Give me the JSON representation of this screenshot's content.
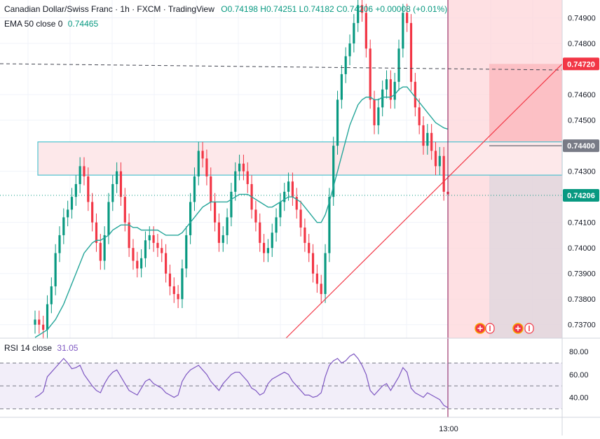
{
  "header": {
    "title": "Canadian Dollar/Swiss Franc · 1h · FXCM · TradingView",
    "ohlc": "O0.74198 H0.74251 L0.74182 C0.74206 +0.00008 (+0.01%)",
    "ema_label": "EMA 50 close 0",
    "ema_value": "0.74465"
  },
  "rsi": {
    "label": "RSI 14 close",
    "value": "31.05",
    "levels": [
      80,
      60,
      40
    ],
    "level_labels": [
      "80.00",
      "60.00",
      "40.00"
    ],
    "upper_band": 70,
    "lower_band": 30
  },
  "price_axis": {
    "ticks": [
      0.749,
      0.748,
      0.746,
      0.745,
      0.743,
      0.741,
      0.74,
      0.739,
      0.738,
      0.737
    ],
    "tick_labels": [
      "0.74900",
      "0.74800",
      "0.74600",
      "0.74500",
      "0.74300",
      "0.74100",
      "0.74000",
      "0.73900",
      "0.73800",
      "0.73700"
    ],
    "tags": [
      {
        "label": "0.74720",
        "value": 0.7472,
        "color": "#f23645"
      },
      {
        "label": "0.74400",
        "value": 0.744,
        "color": "#787b86"
      },
      {
        "label": "0.74206",
        "value": 0.74206,
        "color": "#089981"
      }
    ]
  },
  "time_axis": {
    "label": "13:00"
  },
  "colors": {
    "up": "#089981",
    "down": "#f23645",
    "ema": "#26a69a",
    "rsi": "#7e57c2",
    "zone_border": "#4fc3cf",
    "zone_fill": "#fde8ea",
    "stop_fill": "#fbb8bd",
    "risk_fill": "#fdd6da"
  },
  "icons": [
    "plus-circle-icon",
    "arrow-bar-icon",
    "plus-circle-icon",
    "arrow-bar-icon"
  ],
  "chart_data": {
    "type": "line",
    "title": "Canadian Dollar/Swiss Franc · 1h · FXCM · TradingView",
    "ylim": [
      0.7365,
      0.7497
    ],
    "series": [
      {
        "name": "Close",
        "values": [
          0.7372,
          0.737,
          0.7368,
          0.7378,
          0.7385,
          0.7398,
          0.7405,
          0.7412,
          0.7415,
          0.742,
          0.7425,
          0.7432,
          0.7428,
          0.7418,
          0.741,
          0.7402,
          0.7395,
          0.7405,
          0.7418,
          0.7425,
          0.743,
          0.742,
          0.741,
          0.74,
          0.7395,
          0.7392,
          0.7396,
          0.7403,
          0.7405,
          0.7402,
          0.74,
          0.7398,
          0.739,
          0.7385,
          0.7382,
          0.738,
          0.7392,
          0.7405,
          0.7418,
          0.7428,
          0.7438,
          0.7435,
          0.7428,
          0.7418,
          0.741,
          0.7402,
          0.7405,
          0.7412,
          0.7422,
          0.743,
          0.7433,
          0.743,
          0.7425,
          0.7415,
          0.741,
          0.7402,
          0.7398,
          0.74,
          0.7406,
          0.7412,
          0.7418,
          0.7422,
          0.7426,
          0.742,
          0.7415,
          0.7408,
          0.7402,
          0.7398,
          0.739,
          0.7386,
          0.7382,
          0.7398,
          0.742,
          0.744,
          0.7458,
          0.7468,
          0.7475,
          0.748,
          0.7488,
          0.7495,
          0.7492,
          0.7478,
          0.7458,
          0.7448,
          0.7455,
          0.7462,
          0.7466,
          0.7458,
          0.7465,
          0.7478,
          0.7492,
          0.7488,
          0.7465,
          0.7455,
          0.7448,
          0.744,
          0.7445,
          0.7438,
          0.7432,
          0.7436,
          0.7422,
          0.7421
        ]
      },
      {
        "name": "EMA 50 close 0",
        "values": [
          0.7365,
          0.7366,
          0.7367,
          0.7368,
          0.737,
          0.7372,
          0.7375,
          0.7378,
          0.7382,
          0.7386,
          0.739,
          0.7394,
          0.7398,
          0.74,
          0.7402,
          0.7403,
          0.7403,
          0.7404,
          0.7405,
          0.7407,
          0.7408,
          0.7409,
          0.7409,
          0.7409,
          0.7408,
          0.7408,
          0.7407,
          0.7407,
          0.7407,
          0.7407,
          0.7407,
          0.7406,
          0.7405,
          0.7405,
          0.7405,
          0.7405,
          0.7406,
          0.7408,
          0.741,
          0.7412,
          0.7414,
          0.7416,
          0.7417,
          0.7418,
          0.7418,
          0.7418,
          0.7418,
          0.7418,
          0.7419,
          0.742,
          0.7421,
          0.7421,
          0.7421,
          0.742,
          0.7419,
          0.7418,
          0.7417,
          0.7416,
          0.7416,
          0.7417,
          0.7418,
          0.7419,
          0.742,
          0.742,
          0.7419,
          0.7418,
          0.7416,
          0.7414,
          0.7412,
          0.741,
          0.741,
          0.7413,
          0.7418,
          0.7424,
          0.743,
          0.7436,
          0.7442,
          0.7448,
          0.7452,
          0.7456,
          0.7458,
          0.7459,
          0.7459,
          0.7458,
          0.7458,
          0.7459,
          0.7459,
          0.7459,
          0.746,
          0.7462,
          0.7463,
          0.7463,
          0.7461,
          0.7459,
          0.7457,
          0.7455,
          0.7453,
          0.7451,
          0.7449,
          0.7448,
          0.7447,
          0.74465
        ]
      }
    ],
    "rsi": [
      40,
      42,
      45,
      58,
      62,
      66,
      70,
      74,
      70,
      65,
      66,
      68,
      60,
      55,
      50,
      46,
      44,
      52,
      58,
      62,
      64,
      58,
      52,
      46,
      44,
      42,
      48,
      54,
      56,
      52,
      50,
      48,
      44,
      42,
      40,
      42,
      54,
      60,
      64,
      66,
      68,
      64,
      60,
      54,
      50,
      46,
      52,
      56,
      60,
      62,
      62,
      58,
      54,
      48,
      46,
      42,
      44,
      52,
      56,
      58,
      60,
      62,
      60,
      54,
      50,
      46,
      42,
      42,
      40,
      41,
      44,
      58,
      68,
      72,
      74,
      70,
      72,
      76,
      78,
      74,
      68,
      60,
      46,
      42,
      46,
      50,
      52,
      46,
      52,
      58,
      66,
      62,
      48,
      44,
      42,
      40,
      44,
      42,
      40,
      38,
      33,
      31
    ]
  }
}
